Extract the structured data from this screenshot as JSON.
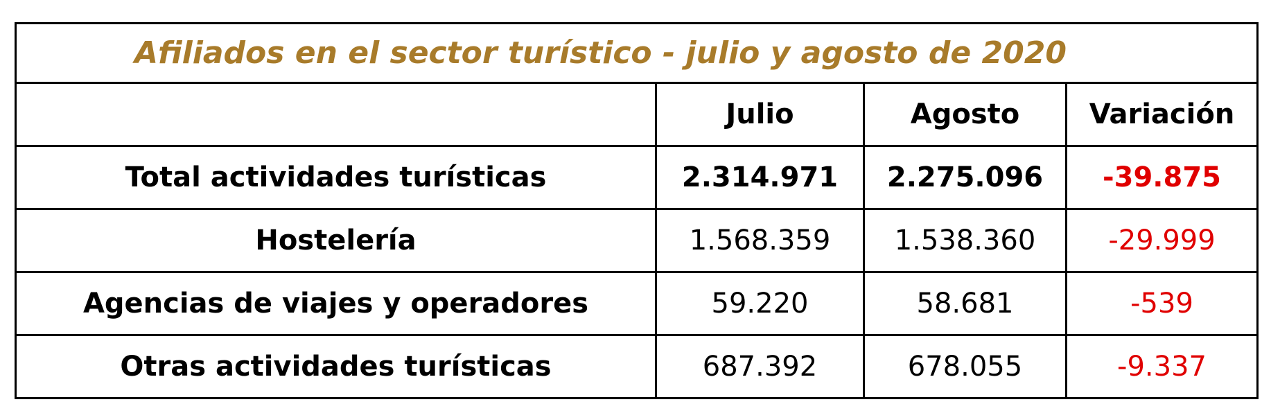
{
  "table": {
    "title": "Afiliados en el sector turístico - julio y agosto de 2020",
    "header": [
      "",
      "Julio",
      "Agosto",
      "Variación"
    ],
    "rows": [
      [
        "Total actividades turísticas",
        "2.314.971",
        "2.275.096",
        "-39.875"
      ],
      [
        "Hostelería",
        "1.568.359",
        "1.538.360",
        "-29.999"
      ],
      [
        "Agencias de viajes y operadores",
        "59.220",
        "58.681",
        "-539"
      ],
      [
        "Otras actividades turísticas",
        "687.392",
        "678.055",
        "-9.337"
      ]
    ]
  }
}
